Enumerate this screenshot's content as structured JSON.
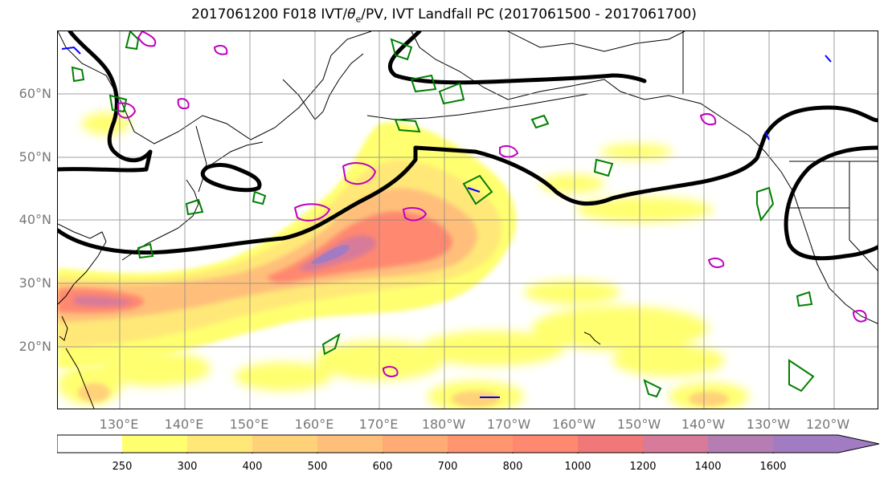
{
  "title_prefix": "2017061200 F018 IVT/",
  "title_symbol": "θ",
  "title_sub": "e",
  "title_suffix": "/PV, IVT Landfall PC (2017061500 - 2017061700)",
  "lat_labels": [
    "60°N",
    "50°N",
    "40°N",
    "30°N",
    "20°N"
  ],
  "lon_labels": [
    "130°E",
    "140°E",
    "150°E",
    "160°E",
    "170°E",
    "180°W",
    "170°W",
    "160°W",
    "150°W",
    "140°W",
    "130°W",
    "120°W"
  ],
  "colorbar": {
    "ticks": [
      "250",
      "300",
      "400",
      "500",
      "600",
      "700",
      "800",
      "1000",
      "1200",
      "1400",
      "1600"
    ],
    "colors": [
      "#ffffff",
      "#ffff70",
      "#ffe878",
      "#ffd27a",
      "#ffbf7a",
      "#ffab76",
      "#ff966f",
      "#ff8870",
      "#f07878",
      "#d87a9a",
      "#b67cb4",
      "#a27cc2"
    ]
  },
  "colors": {
    "theta_e_contour": "#000000",
    "pv_positive": "#008000",
    "pv_magenta": "#c000c0",
    "pv_blue": "#0000ff",
    "grid": "#888888",
    "coastline": "#000000"
  }
}
